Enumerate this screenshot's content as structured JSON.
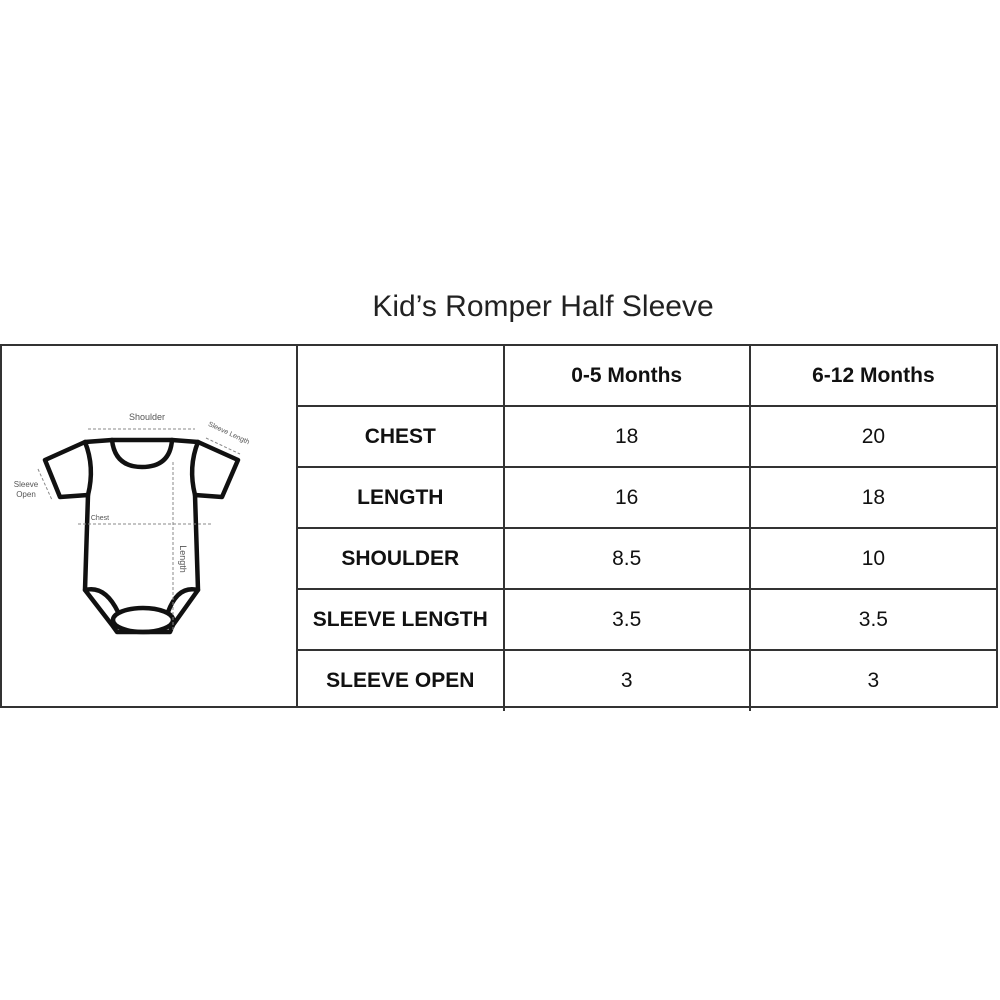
{
  "title": "Kid’s Romper Half Sleeve",
  "diagram": {
    "shoulder": "Shoulder",
    "sleeve_length": "Sleeve Length",
    "sleeve_open_1": "Sleeve",
    "sleeve_open_2": "Open",
    "chest": "Chest",
    "length": "Length"
  },
  "table": {
    "columns": [
      "",
      "0-5 Months",
      "6-12 Months"
    ],
    "rows": [
      {
        "label": "CHEST",
        "values": [
          "18",
          "20"
        ]
      },
      {
        "label": "LENGTH",
        "values": [
          "16",
          "18"
        ]
      },
      {
        "label": "SHOULDER",
        "values": [
          "8.5",
          "10"
        ]
      },
      {
        "label": "SLEEVE LENGTH",
        "values": [
          "3.5",
          "3.5"
        ]
      },
      {
        "label": "SLEEVE OPEN",
        "values": [
          "3",
          "3"
        ]
      }
    ]
  }
}
